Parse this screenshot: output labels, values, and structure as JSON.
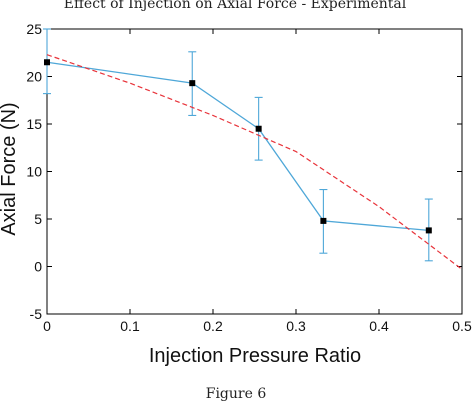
{
  "chart_data": {
    "type": "line",
    "title": "Effect of Injection on Axial Force - Experimental",
    "xlabel": "Injection Pressure Ratio",
    "ylabel": "Axial Force (N)",
    "xlim": [
      0,
      0.5
    ],
    "ylim": [
      -5,
      25
    ],
    "xticks": [
      0,
      0.1,
      0.2,
      0.3,
      0.4,
      0.5
    ],
    "xtick_labels": [
      "0",
      "0.1",
      "0.2",
      "0.3",
      "0.4",
      "0.5"
    ],
    "yticks": [
      -5,
      0,
      5,
      10,
      15,
      20,
      25
    ],
    "ytick_labels": [
      "-5",
      "0",
      "5",
      "10",
      "15",
      "20",
      "25"
    ],
    "grid": false,
    "legend": "none",
    "series": [
      {
        "kind": "measured",
        "color": "#4ea7d8",
        "marker_color": "#000000",
        "x": [
          0,
          0.175,
          0.255,
          0.333,
          0.46
        ],
        "y": [
          21.5,
          19.3,
          14.5,
          4.8,
          3.8
        ],
        "err_low": [
          3.3,
          3.4,
          3.3,
          3.4,
          3.2
        ],
        "err_high": [
          3.5,
          3.3,
          3.3,
          3.3,
          3.3
        ]
      },
      {
        "kind": "fit",
        "style": "dashed",
        "color": "#e8333a",
        "x": [
          0,
          0.1,
          0.2,
          0.3,
          0.4,
          0.5
        ],
        "y": [
          22.3,
          19.3,
          15.9,
          12.1,
          6.3,
          -0.3
        ]
      }
    ]
  },
  "caption": "Figure 6"
}
